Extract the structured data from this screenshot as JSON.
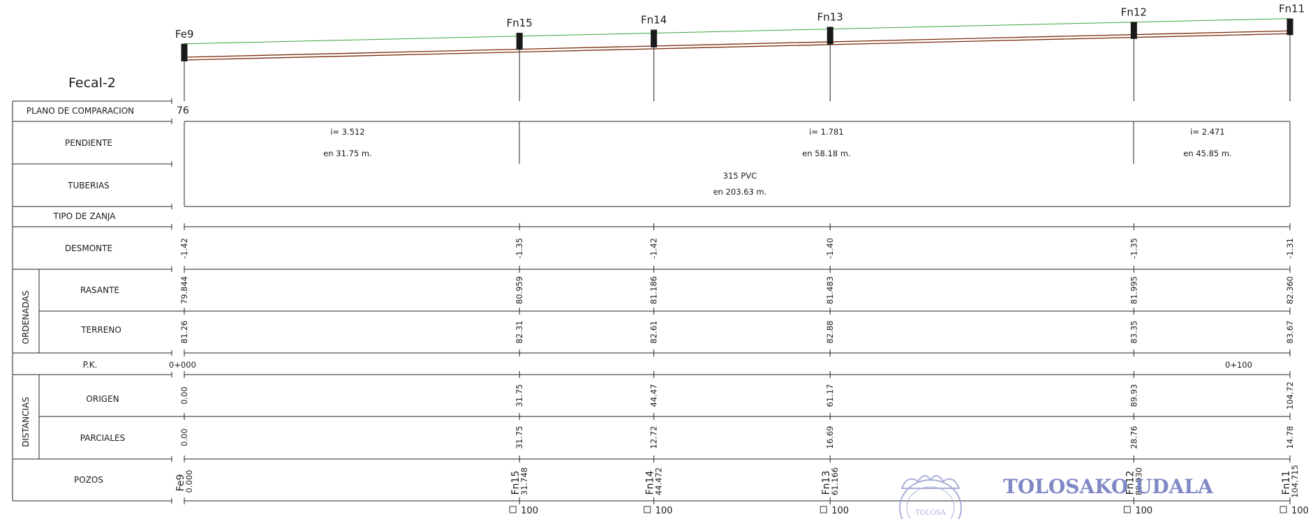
{
  "profile_title": "Fecal-2",
  "datum": "76",
  "row_labels": {
    "plano": "PLANO DE COMPARACION",
    "pendiente": "PENDIENTE",
    "tuberias": "TUBERIAS",
    "zanja": "TIPO DE ZANJA",
    "desmonte": "DESMONTE",
    "ordenadas": "ORDENADAS",
    "rasante": "RASANTE",
    "terreno": "TERRENO",
    "pk": "P.K.",
    "distancias": "DISTANCIAS",
    "origen": "ORIGEN",
    "parciales": "PARCIALES",
    "pozos": "POZOS"
  },
  "slopes": [
    {
      "i": "i= 3.512",
      "len": "en 31.75 m."
    },
    {
      "i": "i= 1.781",
      "len": "en 58.18 m."
    },
    {
      "i": "i= 2.471",
      "len": "en 45.85 m."
    }
  ],
  "pipe": {
    "spec": "315 PVC",
    "len": "en 203.63 m."
  },
  "pk_marks": [
    "0+000",
    "0+100"
  ],
  "manholes": [
    {
      "name": "Fe9",
      "desmonte": "-1.42",
      "rasante": "79.844",
      "terreno": "81.26",
      "origen": "0.00",
      "parcial": "0.00",
      "pozo_pk": "0.000",
      "scale": ""
    },
    {
      "name": "Fn15",
      "desmonte": "-1.35",
      "rasante": "80.959",
      "terreno": "82.31",
      "origen": "31.75",
      "parcial": "31.75",
      "pozo_pk": "31.748",
      "scale": "100"
    },
    {
      "name": "Fn14",
      "desmonte": "-1.42",
      "rasante": "81.186",
      "terreno": "82.61",
      "origen": "44.47",
      "parcial": "12.72",
      "pozo_pk": "44.472",
      "scale": "100"
    },
    {
      "name": "Fn13",
      "desmonte": "-1.40",
      "rasante": "81.483",
      "terreno": "82.88",
      "origen": "61.17",
      "parcial": "16.69",
      "pozo_pk": "61.166",
      "scale": "100"
    },
    {
      "name": "Fn12",
      "desmonte": "-1.35",
      "rasante": "81.995",
      "terreno": "83.35",
      "origen": "89.93",
      "parcial": "28.76",
      "pozo_pk": "89.930",
      "scale": "100"
    },
    {
      "name": "Fn11",
      "desmonte": "-1.31",
      "rasante": "82.360",
      "terreno": "83.67",
      "origen": "104.72",
      "parcial": "14.78",
      "pozo_pk": "104.715",
      "scale": "100"
    }
  ],
  "watermark": {
    "text": "TOLOSAKO UDALA",
    "seal_text": "TOLOSA",
    "color": "#7f88c6"
  },
  "colors": {
    "ground_line": "#3aa33a",
    "pipe_line": "#7a2a0a",
    "manhole": "#1a1a1a"
  }
}
